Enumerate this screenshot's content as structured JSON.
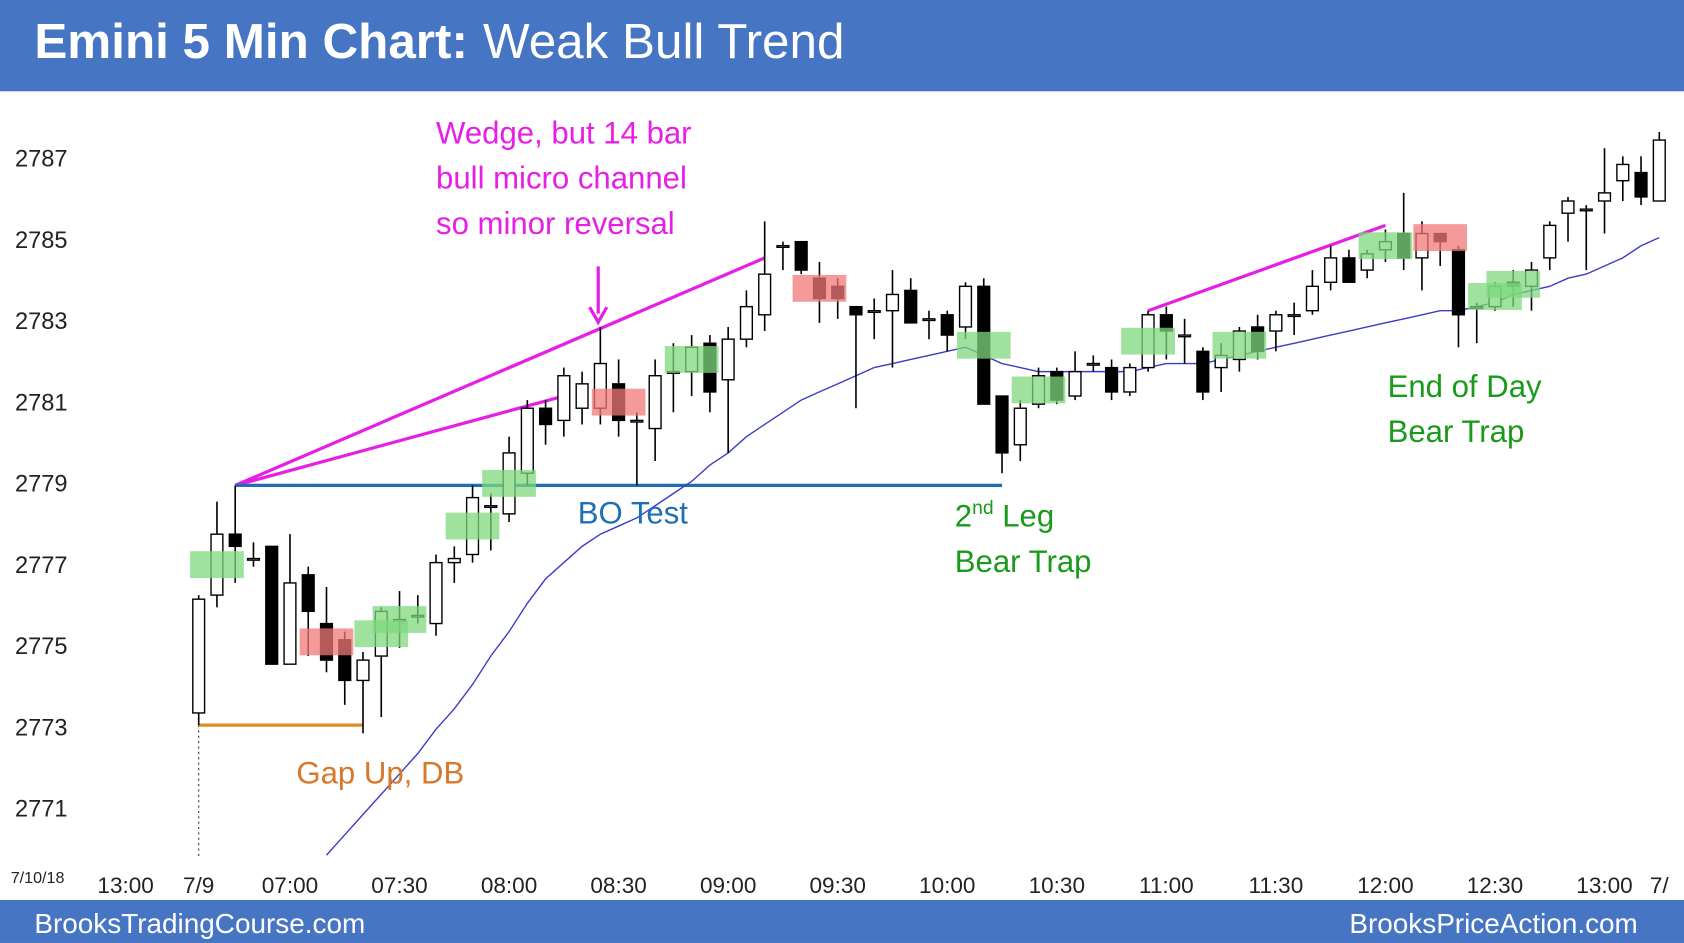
{
  "chart_data": {
    "type": "candlestick",
    "title": "Emini 5 Min Chart:",
    "subtitle": "Weak Bull Trend",
    "date_label": "7/10/18",
    "footer_left": "BrooksTradingCourse.com",
    "footer_right": "BrooksPriceAction.com",
    "ylim": [
      2769.8,
      2788.7
    ],
    "yticks": [
      2771,
      2773,
      2775,
      2777,
      2779,
      2781,
      2783,
      2785,
      2787
    ],
    "grid": false,
    "bull_color": "#ffffff",
    "bear_color": "#000000",
    "categories": [
      null,
      "13:00",
      null,
      null,
      null,
      "7/9",
      null,
      null,
      null,
      null,
      "07:00",
      null,
      null,
      null,
      null,
      null,
      "07:30",
      null,
      null,
      null,
      null,
      null,
      "08:00",
      null,
      null,
      null,
      null,
      null,
      "08:30",
      null,
      null,
      null,
      null,
      null,
      "09:00",
      null,
      null,
      null,
      null,
      null,
      "09:30",
      null,
      null,
      null,
      null,
      null,
      "10:00",
      null,
      null,
      null,
      null,
      null,
      "10:30",
      null,
      null,
      null,
      null,
      null,
      "11:00",
      null,
      null,
      null,
      null,
      null,
      "11:30",
      null,
      null,
      null,
      null,
      null,
      "12:00",
      null,
      null,
      null,
      null,
      null,
      "12:30",
      null,
      null,
      null,
      null,
      null,
      "13:00",
      null,
      null,
      "7/"
    ],
    "open": [
      null,
      null,
      null,
      null,
      null,
      2773.4,
      2776.3,
      2777.8,
      2777.2,
      2777.5,
      2774.6,
      2776.8,
      2775.6,
      2775.2,
      2774.2,
      2774.8,
      2775.7,
      2775.8,
      2775.6,
      2777.1,
      2777.3,
      2778.5,
      2778.3,
      2779.3,
      2780.9,
      2780.6,
      2780.9,
      2780.9,
      2781.5,
      2780.6,
      2780.4,
      2781.8,
      2781.8,
      2782.5,
      2781.6,
      2782.6,
      2783.2,
      2784.9,
      2785.0,
      2784.1,
      2783.9,
      2783.4,
      2783.3,
      2783.3,
      2783.8,
      2783.1,
      2783.2,
      2782.9,
      2783.9,
      2781.2,
      2780.0,
      2781.0,
      2781.8,
      2781.2,
      2782.0,
      2781.9,
      2781.3,
      2781.9,
      2783.2,
      2782.7,
      2782.3,
      2781.9,
      2782.1,
      2782.9,
      2782.8,
      2783.2,
      2783.3,
      2784.0,
      2784.6,
      2784.3,
      2784.8,
      2785.2,
      2784.6,
      2785.2,
      2784.8,
      2783.4,
      2783.4,
      2784.0,
      2783.9,
      2784.6,
      2785.7,
      2785.8,
      2786.0,
      2786.5,
      2786.7,
      2786.0
    ],
    "high": [
      null,
      null,
      null,
      null,
      null,
      2776.3,
      2778.6,
      2779.0,
      2777.6,
      2777.5,
      2777.8,
      2777.0,
      2776.5,
      2775.4,
      2774.9,
      2776.0,
      2776.4,
      2776.3,
      2777.3,
      2777.5,
      2779.0,
      2778.8,
      2780.2,
      2781.1,
      2781.1,
      2781.9,
      2781.8,
      2782.9,
      2782.1,
      2780.8,
      2782.1,
      2782.5,
      2782.7,
      2782.7,
      2782.9,
      2783.8,
      2785.5,
      2785.0,
      2785.0,
      2784.5,
      2784.1,
      2783.4,
      2783.6,
      2784.3,
      2784.1,
      2783.3,
      2783.3,
      2784.0,
      2784.1,
      2781.2,
      2781.1,
      2781.9,
      2781.9,
      2782.3,
      2782.2,
      2782.1,
      2782.0,
      2783.3,
      2783.4,
      2783.1,
      2782.4,
      2782.5,
      2782.9,
      2783.2,
      2783.3,
      2783.5,
      2784.3,
      2784.9,
      2784.8,
      2784.8,
      2785.3,
      2786.2,
      2785.5,
      2785.2,
      2784.9,
      2783.5,
      2784.0,
      2784.3,
      2784.5,
      2785.5,
      2786.1,
      2785.9,
      2787.3,
      2787.1,
      2787.1,
      2787.7
    ],
    "low": [
      null,
      null,
      null,
      null,
      null,
      2773.1,
      2776.0,
      2776.6,
      2777.0,
      2774.6,
      2774.6,
      2774.8,
      2774.4,
      2773.6,
      2772.9,
      2773.3,
      2775.0,
      2775.6,
      2775.3,
      2776.6,
      2777.1,
      2777.4,
      2778.1,
      2779.0,
      2780.0,
      2780.2,
      2780.5,
      2780.5,
      2780.2,
      2779.0,
      2779.6,
      2780.8,
      2781.2,
      2780.8,
      2779.8,
      2782.4,
      2782.8,
      2784.3,
      2784.2,
      2783.0,
      2783.1,
      2780.9,
      2782.6,
      2781.9,
      2783.0,
      2782.6,
      2782.3,
      2782.6,
      2781.0,
      2779.3,
      2779.6,
      2780.9,
      2781.0,
      2781.1,
      2781.8,
      2781.1,
      2781.2,
      2781.8,
      2782.1,
      2782.0,
      2781.1,
      2781.3,
      2781.8,
      2782.1,
      2782.3,
      2782.7,
      2783.2,
      2783.8,
      2784.0,
      2784.1,
      2784.5,
      2784.3,
      2783.8,
      2784.4,
      2782.4,
      2782.5,
      2783.3,
      2783.4,
      2783.3,
      2784.3,
      2785.0,
      2784.3,
      2785.2,
      2786.0,
      2785.9,
      2786.0
    ],
    "close": [
      null,
      null,
      null,
      null,
      null,
      2776.2,
      2777.8,
      2777.5,
      2777.2,
      2774.6,
      2776.6,
      2775.9,
      2774.7,
      2774.2,
      2774.7,
      2775.9,
      2775.7,
      2775.8,
      2777.1,
      2777.2,
      2778.7,
      2778.5,
      2779.8,
      2780.9,
      2780.5,
      2781.7,
      2781.5,
      2782.0,
      2780.6,
      2780.6,
      2781.7,
      2781.8,
      2782.4,
      2781.3,
      2782.6,
      2783.4,
      2784.2,
      2784.9,
      2784.3,
      2783.6,
      2783.6,
      2783.2,
      2783.3,
      2783.7,
      2783.0,
      2783.1,
      2782.7,
      2783.9,
      2781.0,
      2779.8,
      2780.9,
      2781.7,
      2781.1,
      2781.8,
      2782.0,
      2781.3,
      2781.9,
      2783.2,
      2782.8,
      2782.7,
      2781.3,
      2782.2,
      2782.8,
      2782.3,
      2783.2,
      2783.2,
      2783.9,
      2784.6,
      2784.0,
      2784.7,
      2785.0,
      2784.6,
      2785.2,
      2785.0,
      2783.2,
      2783.4,
      2783.9,
      2783.9,
      2784.3,
      2785.4,
      2786.0,
      2785.8,
      2786.2,
      2786.9,
      2786.1,
      2787.5
    ],
    "moving_average": {
      "color": "#3c3cc8",
      "values": [
        null,
        null,
        null,
        null,
        null,
        null,
        null,
        null,
        null,
        null,
        null,
        null,
        2769.9,
        2770.4,
        2770.9,
        2771.4,
        2771.9,
        2772.4,
        2773.0,
        2773.5,
        2774.1,
        2774.8,
        2775.4,
        2776.1,
        2776.7,
        2777.1,
        2777.5,
        2777.8,
        2778.0,
        2778.2,
        2778.5,
        2778.8,
        2779.1,
        2779.5,
        2779.8,
        2780.2,
        2780.5,
        2780.8,
        2781.1,
        2781.3,
        2781.5,
        2781.7,
        2781.9,
        2782.0,
        2782.1,
        2782.2,
        2782.3,
        2782.4,
        2782.2,
        2782.0,
        2781.9,
        2781.8,
        2781.8,
        2781.8,
        2781.8,
        2781.8,
        2781.8,
        2781.9,
        2782.0,
        2782.0,
        2782.0,
        2782.1,
        2782.2,
        2782.3,
        2782.4,
        2782.5,
        2782.6,
        2782.7,
        2782.8,
        2782.9,
        2783.0,
        2783.1,
        2783.2,
        2783.3,
        2783.3,
        2783.4,
        2783.5,
        2783.7,
        2783.8,
        2783.9,
        2784.1,
        2784.2,
        2784.4,
        2784.6,
        2784.9,
        2785.1
      ]
    },
    "highlights": [
      null,
      null,
      null,
      null,
      null,
      null,
      "#7ed87e",
      null,
      null,
      null,
      null,
      null,
      "#f07878",
      null,
      null,
      "#7ed87e",
      "#7ed87e",
      null,
      null,
      null,
      "#7ed87e",
      null,
      "#7ed87e",
      null,
      null,
      null,
      null,
      null,
      "#f07878",
      null,
      null,
      null,
      "#7ed87e",
      null,
      null,
      null,
      null,
      null,
      null,
      "#f07878",
      null,
      null,
      null,
      null,
      null,
      null,
      null,
      null,
      "#7ed87e",
      null,
      null,
      "#7ed87e",
      null,
      null,
      null,
      null,
      null,
      "#7ed87e",
      null,
      null,
      null,
      null,
      "#7ed87e",
      null,
      null,
      null,
      null,
      null,
      null,
      null,
      "#7ed87e",
      null,
      null,
      "#f07878",
      null,
      null,
      "#7ed87e",
      "#7ed87e",
      null,
      null,
      null,
      null,
      null,
      null,
      null,
      null
    ],
    "trend_lines": [
      {
        "color": "#e61ee6",
        "x": [
          7,
          36
        ],
        "y": [
          2779,
          2784.6
        ]
      },
      {
        "color": "#e61ee6",
        "x": [
          7,
          25
        ],
        "y": [
          2779,
          2781.2
        ]
      },
      {
        "color": "#1f6fb4",
        "x": [
          7,
          49
        ],
        "y": [
          2779,
          2779
        ]
      },
      {
        "color": "#e08a2a",
        "x": [
          5,
          14
        ],
        "y": [
          2773.1,
          2773.1
        ]
      },
      {
        "color": "#e61ee6",
        "x": [
          57,
          70
        ],
        "y": [
          2783.3,
          2785.4
        ]
      }
    ],
    "annotations": [
      {
        "lines": [
          "Wedge, but 14 bar",
          "bull micro channel",
          "so minor reversal"
        ],
        "color": "#e61ee6"
      },
      {
        "lines": [
          "BO Test"
        ],
        "color": "#1f6fb4"
      },
      {
        "lines": [
          "2nd Leg",
          "Bear Trap"
        ],
        "color": "#1a9a1a"
      },
      {
        "lines": [
          "End of Day",
          "Bear Trap"
        ],
        "color": "#1a9a1a"
      },
      {
        "lines": [
          "Gap Up, DB"
        ],
        "color": "#d7782a"
      }
    ]
  }
}
